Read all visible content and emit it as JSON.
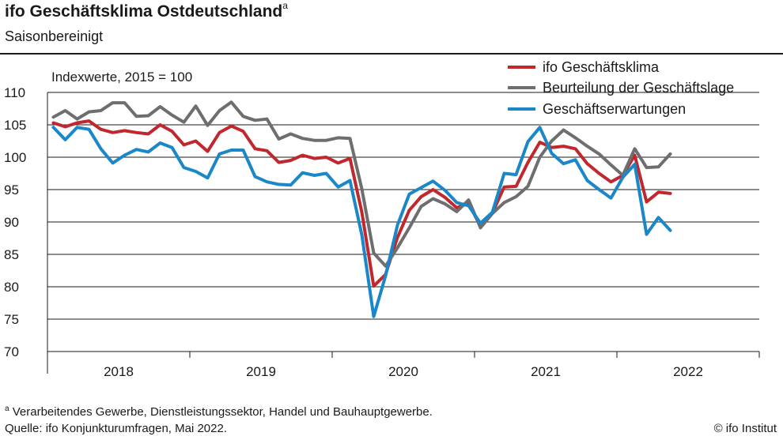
{
  "header": {
    "title": "ifo Geschäftsklima Ostdeutschland",
    "title_sup": "a",
    "subtitle": "Saisonbereinigt"
  },
  "footer": {
    "footnote_sup": "a",
    "footnote": "Verarbeitendes Gewerbe, Dienstleistungssektor, Handel und Bauhauptgewerbe.",
    "source": "Quelle: ifo Konjunkturumfragen, Mai 2022.",
    "copyright": "© ifo Institut"
  },
  "chart_data": {
    "type": "line",
    "title": "ifo Geschäftsklima Ostdeutschland",
    "subtitle": "Saisonbereinigt",
    "index_label": "Indexwerte, 2015 = 100",
    "ylim": [
      70,
      110
    ],
    "yticks": [
      70,
      75,
      80,
      85,
      90,
      95,
      100,
      105,
      110
    ],
    "year_labels": [
      "2018",
      "2019",
      "2020",
      "2021",
      "2022"
    ],
    "x_start": "2018-01",
    "x_end": "2022-05",
    "grid": "horizontal",
    "legend_position": "top-right",
    "series": [
      {
        "name": "ifo Geschäftsklima",
        "color": "#c0282d",
        "values": [
          105.3,
          104.7,
          105.3,
          105.6,
          104.3,
          103.8,
          104.1,
          103.8,
          103.6,
          105.0,
          104.0,
          101.9,
          102.5,
          100.9,
          103.8,
          104.8,
          104.0,
          101.3,
          101.0,
          99.2,
          99.5,
          100.3,
          99.8,
          100.0,
          99.1,
          99.8,
          91.5,
          80.1,
          81.9,
          87.6,
          91.8,
          93.9,
          95.0,
          93.8,
          92.2,
          92.9,
          89.3,
          91.4,
          95.4,
          95.5,
          99.2,
          102.3,
          101.5,
          101.7,
          101.3,
          99.0,
          97.5,
          96.2,
          97.2,
          100.3,
          93.1,
          94.6,
          94.4
        ]
      },
      {
        "name": "Beurteilung der Geschäftslage",
        "color": "#6e6e6e",
        "values": [
          106.2,
          107.2,
          105.9,
          107.0,
          107.2,
          108.4,
          108.4,
          106.3,
          106.4,
          107.8,
          106.5,
          105.4,
          107.9,
          104.9,
          107.2,
          108.5,
          106.3,
          105.7,
          105.9,
          102.8,
          103.6,
          102.9,
          102.6,
          102.6,
          103.0,
          102.9,
          95.1,
          85.2,
          83.2,
          86.0,
          89.1,
          92.4,
          93.6,
          92.8,
          91.6,
          93.4,
          89.1,
          91.3,
          93.0,
          93.9,
          95.5,
          100.0,
          102.5,
          104.2,
          103.0,
          101.7,
          100.5,
          98.8,
          97.2,
          101.3,
          98.4,
          98.5,
          100.5
        ]
      },
      {
        "name": "Geschäftserwartungen",
        "color": "#1a87c8",
        "values": [
          104.6,
          102.7,
          104.6,
          104.3,
          101.3,
          99.1,
          100.3,
          101.2,
          100.8,
          102.2,
          101.5,
          98.4,
          97.8,
          96.8,
          100.5,
          101.1,
          101.1,
          97.0,
          96.2,
          95.8,
          95.7,
          97.6,
          97.2,
          97.5,
          95.4,
          96.4,
          88.0,
          75.4,
          81.7,
          89.5,
          94.3,
          95.3,
          96.3,
          94.9,
          93.0,
          92.5,
          89.8,
          91.5,
          97.5,
          97.3,
          102.4,
          104.6,
          100.6,
          99.0,
          99.6,
          96.4,
          95.0,
          93.7,
          96.9,
          98.9,
          88.1,
          90.7,
          88.7
        ]
      }
    ]
  }
}
